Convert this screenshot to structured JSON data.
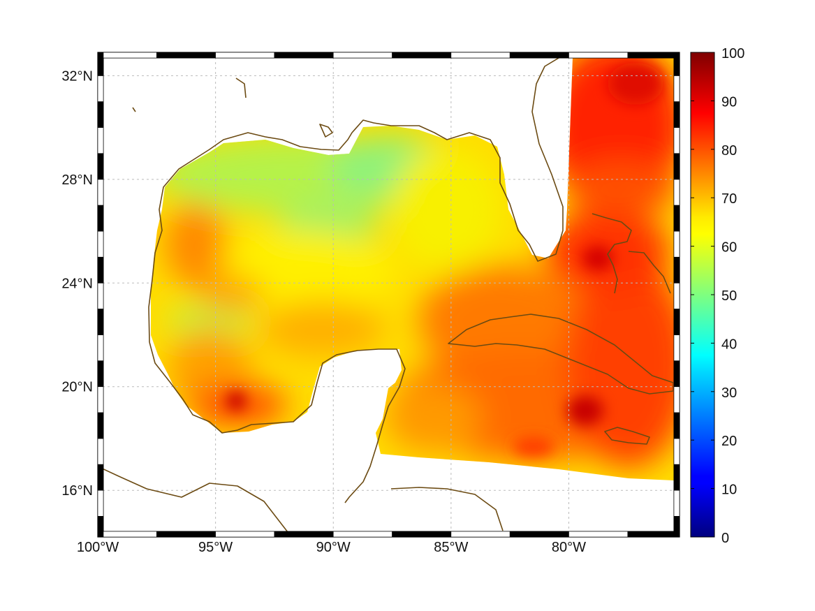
{
  "map": {
    "lon_range": [
      -100,
      -75.3
    ],
    "lat_range": [
      14.2,
      32.9
    ],
    "graticule": "dashed",
    "lon_ticks": [
      {
        "value": -100,
        "label": "100°W"
      },
      {
        "value": -95,
        "label": "95°W"
      },
      {
        "value": -90,
        "label": "90°W"
      },
      {
        "value": -85,
        "label": "85°W"
      },
      {
        "value": -80,
        "label": "80°W"
      }
    ],
    "lat_ticks": [
      {
        "value": 32,
        "label": "32°N"
      },
      {
        "value": 28,
        "label": "28°N"
      },
      {
        "value": 24,
        "label": "24°N"
      },
      {
        "value": 20,
        "label": "20°N"
      },
      {
        "value": 16,
        "label": "16°N"
      }
    ],
    "coastline_color": "#6b4a12"
  },
  "colorbar": {
    "colormap": "jet",
    "range": [
      0,
      100
    ],
    "ticks": [
      {
        "value": 100,
        "label": "100"
      },
      {
        "value": 90,
        "label": "90"
      },
      {
        "value": 80,
        "label": "80"
      },
      {
        "value": 70,
        "label": "70"
      },
      {
        "value": 60,
        "label": "60"
      },
      {
        "value": 50,
        "label": "50"
      },
      {
        "value": 40,
        "label": "40"
      },
      {
        "value": 30,
        "label": "30"
      },
      {
        "value": 20,
        "label": "20"
      },
      {
        "value": 10,
        "label": "10"
      },
      {
        "value": 0,
        "label": "0"
      }
    ]
  },
  "field_regions": [
    {
      "name": "northern-gulf",
      "approx_value": 55
    },
    {
      "name": "central-gulf",
      "approx_value": 63
    },
    {
      "name": "western-gulf",
      "approx_value": 72
    },
    {
      "name": "caribbean",
      "approx_value": 80
    },
    {
      "name": "atlantic-off-florida",
      "approx_value": 88
    }
  ]
}
